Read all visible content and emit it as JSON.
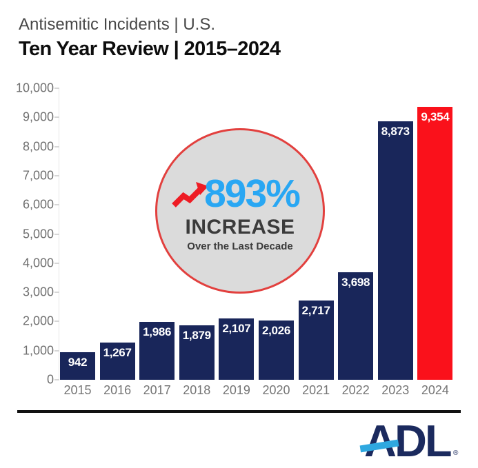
{
  "header": {
    "subtitle": "Antisemitic Incidents | U.S.",
    "title": "Ten Year Review | 2015–2024"
  },
  "chart_data": {
    "type": "bar",
    "title": "Antisemitic Incidents in the U.S. | Ten Year Review 2015–2024",
    "categories": [
      "2015",
      "2016",
      "2017",
      "2018",
      "2019",
      "2020",
      "2021",
      "2022",
      "2023",
      "2024"
    ],
    "values": [
      942,
      1267,
      1986,
      1879,
      2107,
      2026,
      2717,
      3698,
      8873,
      9354
    ],
    "value_labels": [
      "942",
      "1,267",
      "1,986",
      "1,879",
      "2,107",
      "2,026",
      "2,717",
      "3,698",
      "8,873",
      "9,354"
    ],
    "xlabel": "",
    "ylabel": "",
    "ylim": [
      0,
      10000
    ],
    "ytick_step": 1000,
    "grid": false,
    "legend": "none",
    "bar_color": "#19265a",
    "highlight_index": 9,
    "highlight_color": "#fa111b",
    "value_label_color": "#ffffff",
    "axis_label_color": "#6f6f6f"
  },
  "badge": {
    "percent": "893%",
    "label": "INCREASE",
    "sublabel": "Over the Last Decade",
    "percent_color": "#29a7f3",
    "circle_fill": "#dbdbdb",
    "circle_border": "#e2403e",
    "arrow_color": "#ee1c24",
    "arrow_icon": "trending-up-arrow-icon"
  },
  "footer": {
    "brand": "ADL",
    "registered": "®",
    "brand_color": "#1b2a5e",
    "slash_color": "#2fa8e0"
  }
}
